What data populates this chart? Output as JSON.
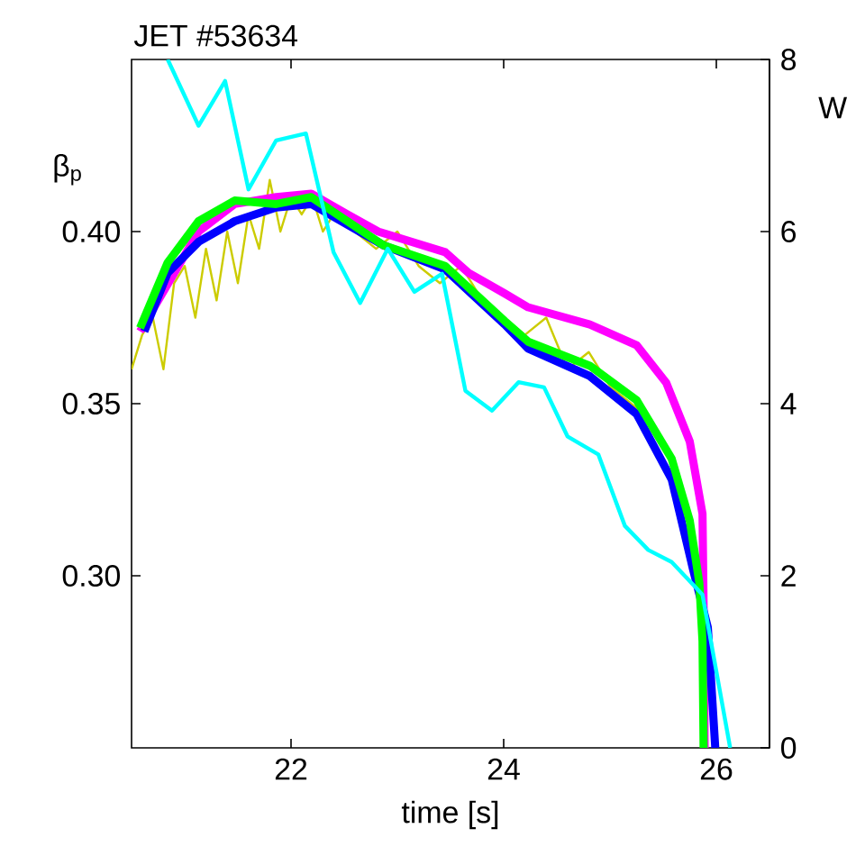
{
  "chart_data": {
    "type": "line",
    "title": "JET #53634",
    "xlabel": "time [s]",
    "ylabel": "β$_{p}$",
    "y2label": "W",
    "xlim": [
      20.5,
      26.5
    ],
    "xticks": [
      22,
      24,
      26
    ],
    "ylim": [
      0.25,
      0.45
    ],
    "yticks": [
      {
        "value": 0.3,
        "label": "0.30"
      },
      {
        "value": 0.35,
        "label": "0.35"
      },
      {
        "value": 0.4,
        "label": "0.40"
      }
    ],
    "y2lim": [
      0,
      8
    ],
    "y2ticks": [
      0,
      2,
      4,
      6,
      8
    ],
    "grid": false,
    "series": [
      {
        "color": "#cccc00",
        "x": [
          20.5,
          20.6,
          20.7,
          20.8,
          20.9,
          21.0,
          21.1,
          21.2,
          21.3,
          21.4,
          21.5,
          21.6,
          21.7,
          21.8,
          21.9,
          22.0,
          22.1,
          22.2,
          22.3,
          22.4,
          22.6,
          22.8,
          23.0,
          23.2,
          23.4,
          23.6,
          23.8,
          24.0,
          24.2,
          24.4,
          24.6,
          24.8,
          25.0,
          25.2,
          25.4
        ],
        "values": [
          0.36,
          0.37,
          0.375,
          0.36,
          0.385,
          0.39,
          0.375,
          0.395,
          0.38,
          0.4,
          0.385,
          0.405,
          0.395,
          0.415,
          0.4,
          0.41,
          0.405,
          0.41,
          0.4,
          0.405,
          0.4,
          0.395,
          0.4,
          0.39,
          0.385,
          0.39,
          0.38,
          0.375,
          0.37,
          0.375,
          0.36,
          0.365,
          0.355,
          0.35,
          0.345
        ]
      },
      {
        "color": "#ff00ff",
        "x": [
          20.58,
          20.84,
          21.13,
          21.47,
          21.86,
          22.19,
          22.53,
          22.82,
          23.45,
          23.67,
          24.01,
          24.23,
          24.81,
          25.25,
          25.53,
          25.75,
          25.87,
          25.88,
          25.89
        ],
        "values": [
          0.371,
          null,
          0.4,
          0.408,
          0.41,
          0.411,
          0.405,
          0.4,
          0.394,
          0.388,
          0.382,
          0.378,
          0.373,
          0.367,
          0.356,
          0.339,
          0.318,
          0.292,
          0.25
        ]
      },
      {
        "color": "#0000ff",
        "x": [
          20.62,
          20.84,
          21.13,
          21.47,
          21.86,
          22.19,
          22.53,
          22.87,
          23.45,
          24.01,
          24.23,
          24.81,
          25.25,
          25.58,
          25.78,
          25.92,
          25.99
        ],
        "values": [
          0.371,
          0.388,
          0.397,
          0.403,
          0.407,
          0.408,
          0.402,
          0.396,
          0.389,
          0.373,
          0.366,
          0.358,
          0.347,
          0.328,
          0.302,
          0.285,
          0.25
        ]
      },
      {
        "color": "#00ff00",
        "x": [
          20.58,
          20.84,
          21.13,
          21.47,
          21.86,
          22.19,
          22.53,
          22.87,
          23.45,
          24.01,
          24.23,
          24.81,
          25.25,
          25.58,
          25.75,
          25.84,
          25.87,
          25.88
        ],
        "values": [
          0.372,
          0.391,
          0.403,
          0.409,
          0.408,
          0.41,
          0.403,
          0.396,
          0.39,
          0.374,
          0.368,
          0.361,
          0.351,
          0.334,
          0.316,
          0.298,
          0.281,
          0.25
        ]
      },
      {
        "color": "#00ffff",
        "axis": "y2",
        "x": [
          20.84,
          21.13,
          21.38,
          21.6,
          21.86,
          22.14,
          22.4,
          22.65,
          22.91,
          23.16,
          23.42,
          23.64,
          23.89,
          24.14,
          24.38,
          24.6,
          24.89,
          25.14,
          25.36,
          25.58,
          25.87,
          26.13
        ],
        "values": [
          8.0,
          7.23,
          7.75,
          6.49,
          7.06,
          7.14,
          5.76,
          5.17,
          5.8,
          5.3,
          5.51,
          4.15,
          3.92,
          4.25,
          4.19,
          3.62,
          3.41,
          2.58,
          2.3,
          2.16,
          1.78,
          0
        ]
      }
    ]
  }
}
